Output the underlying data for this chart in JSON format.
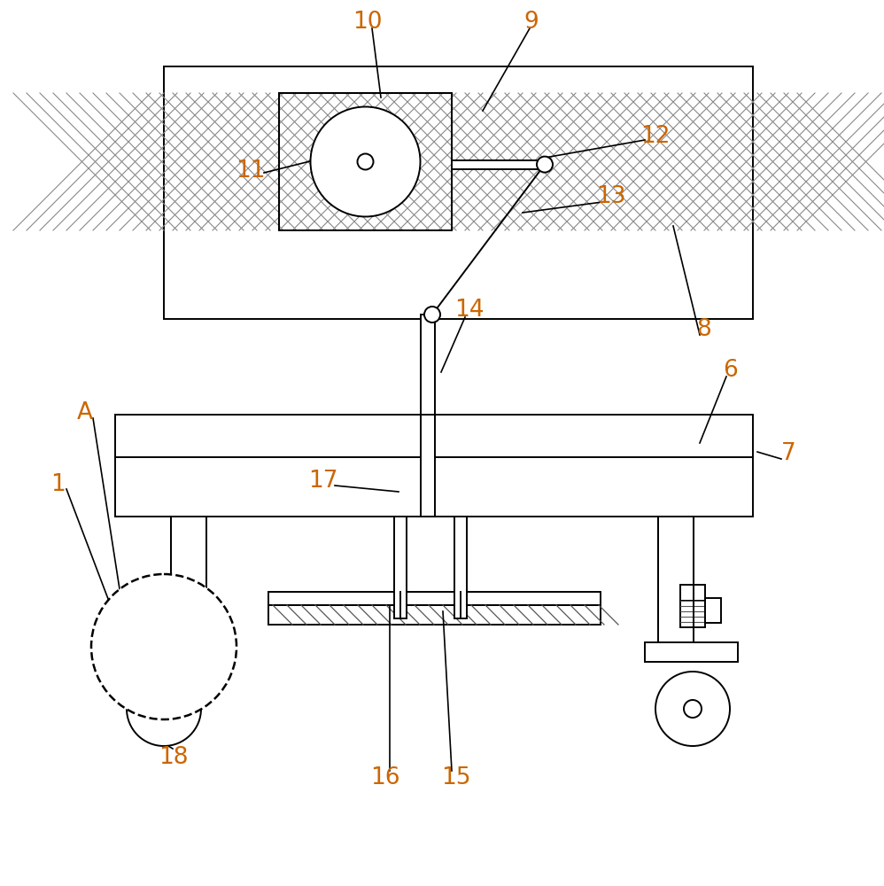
{
  "bg_color": "#ffffff",
  "line_color": "#000000",
  "label_color": "#cc6600",
  "figsize": [
    9.98,
    10.0
  ],
  "dpi": 100,
  "lw": 1.4
}
